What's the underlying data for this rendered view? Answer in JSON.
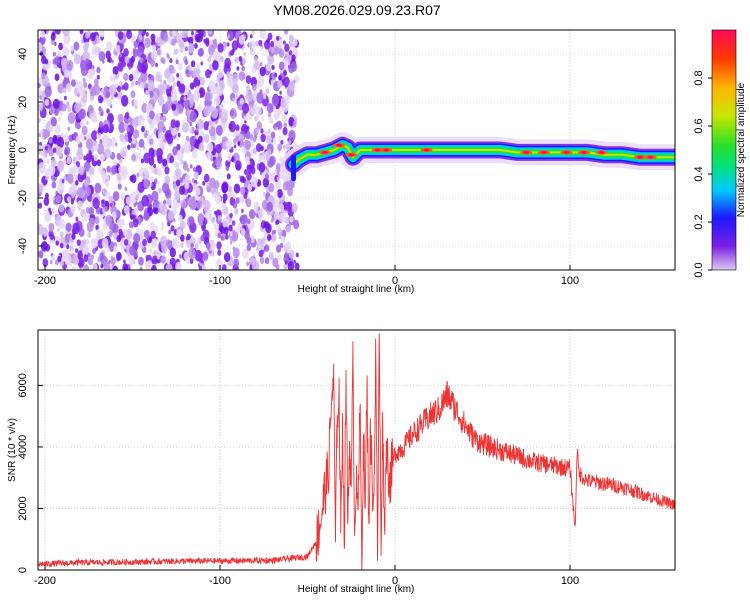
{
  "title": "YM08.2026.029.09.23.R07",
  "chart_data": [
    {
      "type": "heatmap",
      "xlabel": "Height of straight line (km)",
      "ylabel": "Frequency (Hz)",
      "xlim": [
        -204,
        160
      ],
      "ylim": [
        -50,
        50
      ],
      "xticks": [
        -200,
        -100,
        0,
        100
      ],
      "yticks": [
        -40,
        -20,
        0,
        20,
        40
      ],
      "noise_region_x": [
        -204,
        -58
      ],
      "signal_track": {
        "x": [
          -58,
          -55,
          -50,
          -45,
          -40,
          -35,
          -30,
          -27,
          -24,
          -20,
          -15,
          -10,
          -5,
          0,
          5,
          10,
          20,
          30,
          40,
          50,
          60,
          70,
          80,
          90,
          100,
          110,
          120,
          130,
          140,
          150,
          160
        ],
        "frequency": [
          -6,
          -4,
          -2,
          -2,
          -1,
          0,
          2,
          1,
          -3,
          0,
          0,
          0,
          0,
          0,
          0,
          0,
          0,
          0,
          0,
          0,
          0,
          -1,
          -1,
          -1,
          -1,
          -1,
          -2,
          -2,
          -3,
          -3,
          -3
        ]
      },
      "colorbar": {
        "label": "Normalized spectral amplitude",
        "range": [
          0.0,
          1.0
        ],
        "ticks": [
          0.0,
          0.2,
          0.4,
          0.6,
          0.8
        ],
        "colormap": [
          "#dcc8f0",
          "#7a1fe6",
          "#1a1aff",
          "#00c8ff",
          "#00e08a",
          "#2adf2a",
          "#c8e600",
          "#ffb400",
          "#ff3a00",
          "#ff0a5a"
        ]
      },
      "grid": true
    },
    {
      "type": "line",
      "xlabel": "Height of straight line (km)",
      "ylabel": "SNR (10 * v/v)",
      "xlim": [
        -204,
        160
      ],
      "ylim": [
        0,
        7800
      ],
      "xticks": [
        -200,
        -100,
        0,
        100
      ],
      "yticks": [
        0,
        2000,
        4000,
        6000
      ],
      "color": "#ee3333",
      "series": [
        {
          "x": [
            -204,
            -180,
            -150,
            -120,
            -90,
            -70,
            -50,
            -45,
            -42,
            -40,
            -38,
            -36,
            -35,
            -34,
            -33,
            -32,
            -31,
            -30,
            -29,
            -28,
            -27,
            -26,
            -25,
            -24,
            -23,
            -22,
            -21,
            -20,
            -19,
            -18,
            -17,
            -16,
            -15,
            -14,
            -13,
            -12,
            -11,
            -10,
            -9,
            -8,
            -7,
            -6,
            -5,
            -4,
            -3,
            -2,
            0,
            5,
            10,
            15,
            20,
            25,
            30,
            32,
            35,
            40,
            45,
            50,
            60,
            70,
            80,
            90,
            100,
            103,
            104,
            105,
            110,
            120,
            130,
            140,
            150,
            160
          ],
          "y": [
            150,
            200,
            220,
            250,
            260,
            270,
            400,
            900,
            1800,
            2600,
            3200,
            5800,
            6050,
            900,
            5000,
            5900,
            1200,
            5100,
            700,
            6500,
            1500,
            4200,
            2700,
            6800,
            1100,
            3400,
            2100,
            5300,
            300,
            4400,
            2000,
            6100,
            1500,
            4600,
            2800,
            2400,
            7200,
            300,
            7700,
            900,
            4800,
            1400,
            4200,
            3500,
            2800,
            3300,
            3800,
            4000,
            4400,
            4700,
            5000,
            5200,
            5700,
            5500,
            5200,
            4700,
            4300,
            4100,
            3900,
            3700,
            3500,
            3400,
            3300,
            1300,
            4000,
            3150,
            2900,
            2800,
            2700,
            2500,
            2300,
            2100
          ]
        }
      ],
      "grid": true
    }
  ]
}
